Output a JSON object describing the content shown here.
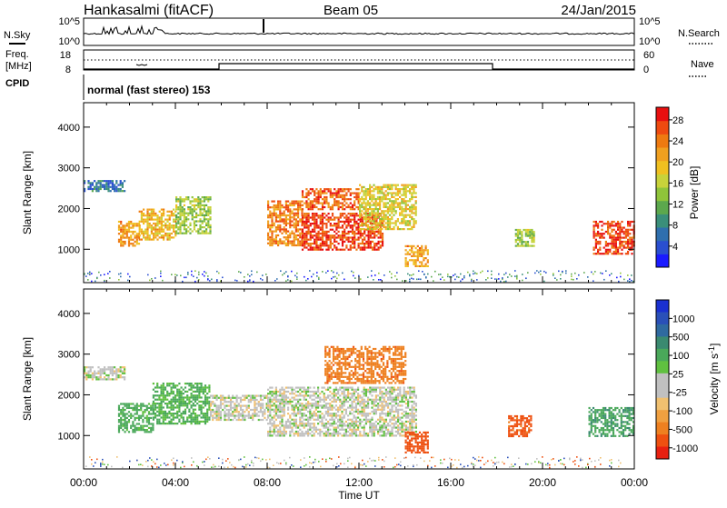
{
  "header": {
    "station": "Hankasalmi (fitACF)",
    "beam": "Beam 05",
    "date": "24/Jan/2015"
  },
  "top_panels": {
    "nsky_label": "N.Sky",
    "nsky_tick_top": "10^5",
    "nsky_tick_bottom": "10^0",
    "nsearch_label": "N.Search",
    "nsearch_tick_top": "10^5",
    "nsearch_tick_bottom": "10^0",
    "freq_label_line1": "Freq.",
    "freq_label_line2": "[MHz]",
    "freq_tick_top": "18",
    "freq_tick_bottom": "8",
    "nave_label": "Nave",
    "nave_tick_top": "60",
    "nave_tick_bottom": "0",
    "cpid_label": "CPID",
    "cpid_text": "normal (fast stereo) 153"
  },
  "axes": {
    "xlabel": "Time UT",
    "ylabel": "Slant Range [km]",
    "x_ticks": [
      "00:00",
      "04:00",
      "08:00",
      "12:00",
      "16:00",
      "20:00",
      "00:00"
    ],
    "y_ticks": [
      "1000",
      "2000",
      "3000",
      "4000"
    ],
    "y_tick_values": [
      1000,
      2000,
      3000,
      4000
    ],
    "xlim_hours": [
      0,
      24
    ],
    "ylim_km": [
      180,
      4600
    ]
  },
  "power_colorbar": {
    "label": "Power [dB]",
    "ticks": [
      "4",
      "8",
      "12",
      "16",
      "20",
      "24",
      "28"
    ],
    "colors": [
      "#1a1aff",
      "#2a4fd0",
      "#2f6fae",
      "#3a8f7a",
      "#5ca84d",
      "#8fc43a",
      "#c8d23a",
      "#f0c020",
      "#f0a020",
      "#ee7a10",
      "#ee4a10",
      "#e81010"
    ]
  },
  "velocity_colorbar": {
    "label": "Velocity [m s^-1]",
    "label_main": "Velocity [m s",
    "label_exp": "-1",
    "label_end": "]",
    "ticks": [
      "1000",
      "500",
      "100",
      "25",
      "-25",
      "-100",
      "-500",
      "-1000"
    ],
    "colors": [
      "#1a30d0",
      "#2a50b8",
      "#2f6aa0",
      "#3a8a70",
      "#4aa85a",
      "#60c040",
      "#c0c0c0",
      "#c0c0c0",
      "#f0c070",
      "#f0a040",
      "#ee8020",
      "#ee5010",
      "#e82010"
    ]
  },
  "chart_data": [
    {
      "type": "heatmap",
      "title": "Power",
      "xlabel": "Time UT",
      "ylabel": "Slant Range [km]",
      "xlim": [
        0,
        24
      ],
      "ylim": [
        180,
        4600
      ],
      "value_label": "Power [dB]",
      "value_range": [
        0,
        30
      ],
      "regions": [
        {
          "t0": 0.0,
          "t1": 1.8,
          "r0": 2450,
          "r1": 2700,
          "power": 6
        },
        {
          "t0": 1.5,
          "t1": 2.4,
          "r0": 1100,
          "r1": 1700,
          "power": 22
        },
        {
          "t0": 2.4,
          "t1": 4.0,
          "r0": 1250,
          "r1": 2000,
          "power": 20
        },
        {
          "t0": 4.0,
          "t1": 5.5,
          "r0": 1400,
          "r1": 2300,
          "power": 14
        },
        {
          "t0": 8.0,
          "t1": 9.5,
          "r0": 1100,
          "r1": 2200,
          "power": 24
        },
        {
          "t0": 9.5,
          "t1": 13.0,
          "r0": 1000,
          "r1": 1900,
          "power": 28
        },
        {
          "t0": 9.5,
          "t1": 12.0,
          "r0": 2000,
          "r1": 2500,
          "power": 26
        },
        {
          "t0": 12.0,
          "t1": 14.5,
          "r0": 1500,
          "r1": 2600,
          "power": 18
        },
        {
          "t0": 14.0,
          "t1": 15.0,
          "r0": 600,
          "r1": 1100,
          "power": 22
        },
        {
          "t0": 18.8,
          "t1": 19.6,
          "r0": 1100,
          "r1": 1500,
          "power": 14
        },
        {
          "t0": 22.2,
          "t1": 24.0,
          "r0": 900,
          "r1": 1700,
          "power": 28
        }
      ]
    },
    {
      "type": "heatmap",
      "title": "Velocity",
      "xlabel": "Time UT",
      "ylabel": "Slant Range [km]",
      "xlim": [
        0,
        24
      ],
      "ylim": [
        180,
        4600
      ],
      "value_label": "Velocity [m s^-1]",
      "value_range": [
        -1000,
        1000
      ],
      "regions": [
        {
          "t0": 0.0,
          "t1": 1.8,
          "r0": 2400,
          "r1": 2700,
          "velocity": 0
        },
        {
          "t0": 1.5,
          "t1": 3.0,
          "r0": 1100,
          "r1": 1800,
          "velocity": 150
        },
        {
          "t0": 3.0,
          "t1": 5.5,
          "r0": 1300,
          "r1": 2300,
          "velocity": 120
        },
        {
          "t0": 5.5,
          "t1": 8.0,
          "r0": 1400,
          "r1": 2000,
          "velocity": 0
        },
        {
          "t0": 8.0,
          "t1": 14.5,
          "r0": 1000,
          "r1": 2200,
          "velocity": 0
        },
        {
          "t0": 10.5,
          "t1": 14.0,
          "r0": 2300,
          "r1": 3200,
          "velocity": -400
        },
        {
          "t0": 14.0,
          "t1": 15.0,
          "r0": 600,
          "r1": 1100,
          "velocity": -600
        },
        {
          "t0": 18.5,
          "t1": 19.5,
          "r0": 1000,
          "r1": 1500,
          "velocity": -500
        },
        {
          "t0": 22.0,
          "t1": 24.0,
          "r0": 1000,
          "r1": 1700,
          "velocity": 200
        }
      ]
    }
  ]
}
